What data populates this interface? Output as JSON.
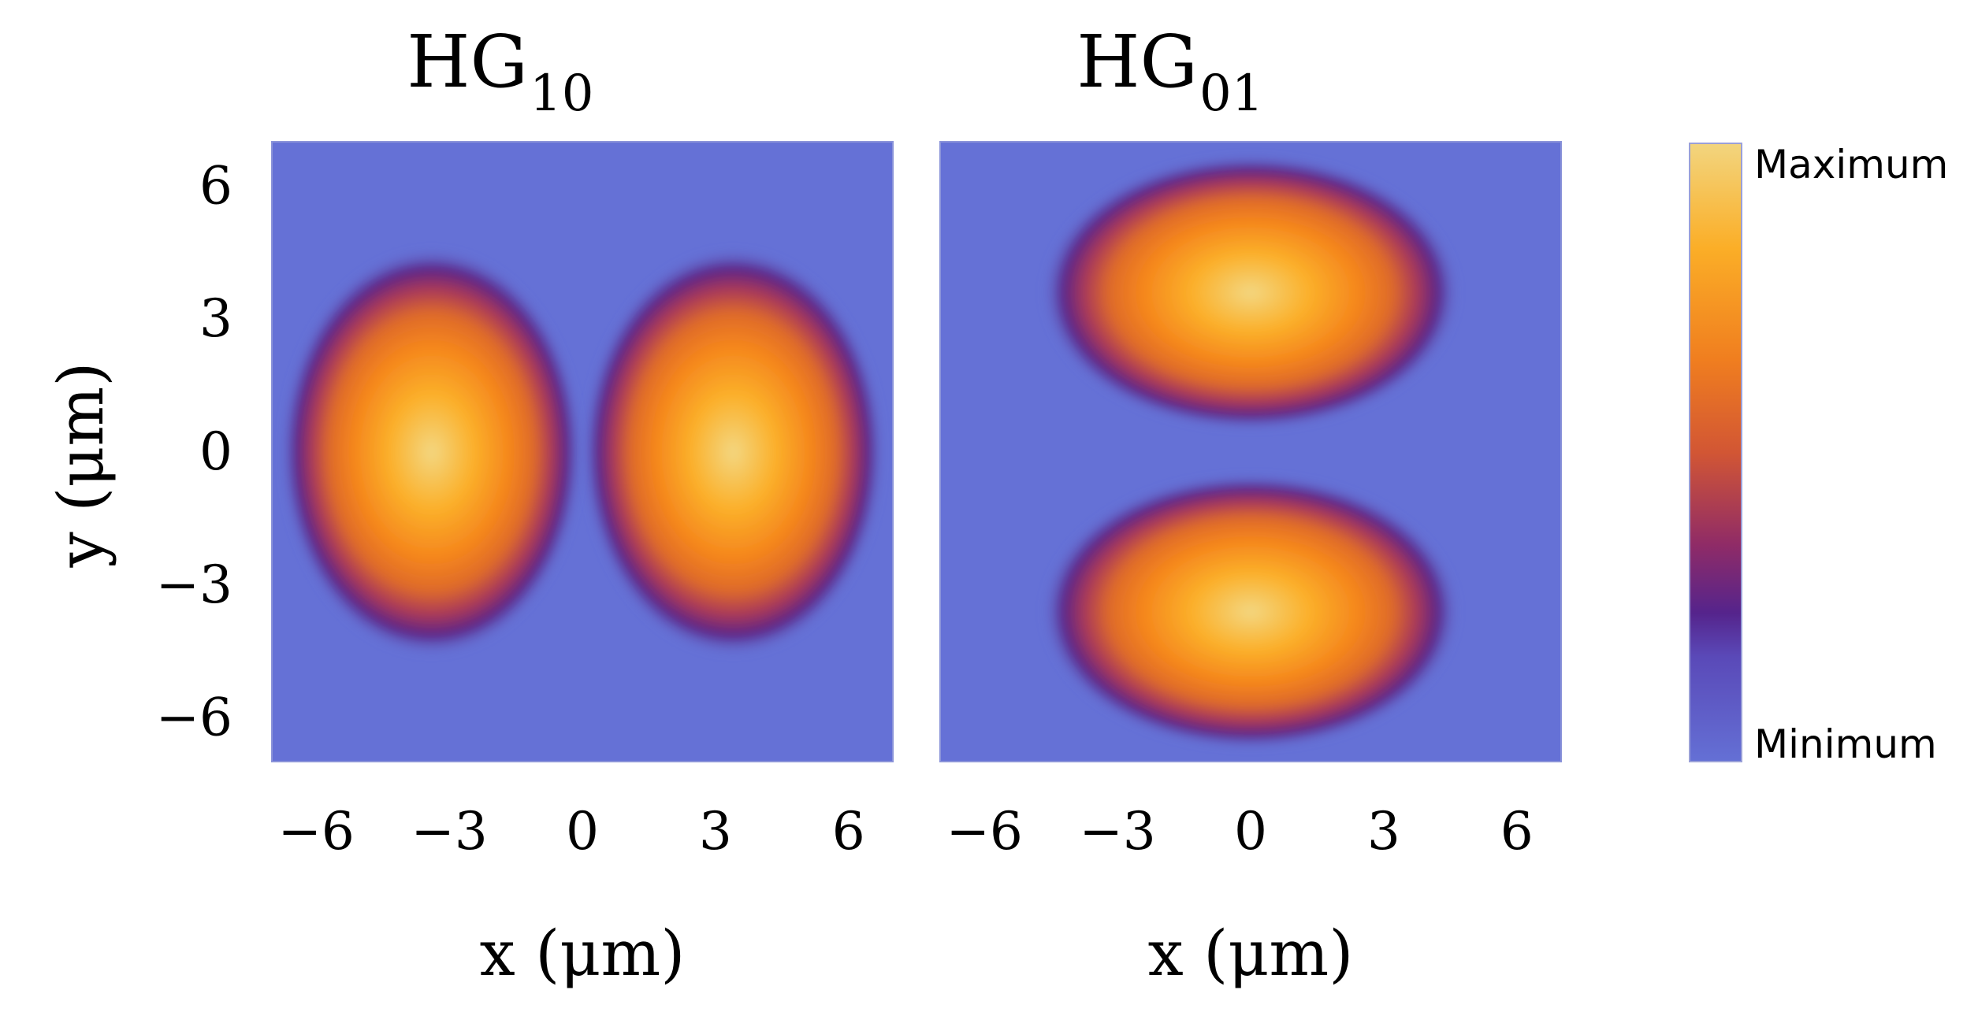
{
  "chart_data": [
    {
      "type": "heatmap",
      "title": "HG",
      "title_subscript": "10",
      "xlabel": "x (μm)",
      "ylabel": "y (μm)",
      "xlim": [
        -7,
        7
      ],
      "ylim": [
        -7,
        7
      ],
      "xticks": [
        -6,
        -3,
        0,
        3,
        6
      ],
      "yticks": [
        -6,
        -3,
        0,
        3,
        6
      ],
      "xtick_labels": [
        "−6",
        "−3",
        "0",
        "3",
        "6"
      ],
      "ytick_labels": [
        "6",
        "3",
        "0",
        "−3",
        "−6"
      ],
      "mode": {
        "m": 1,
        "n": 0
      },
      "lobes": [
        {
          "x": -3.4,
          "y": 0
        },
        {
          "x": 3.4,
          "y": 0
        }
      ]
    },
    {
      "type": "heatmap",
      "title": "HG",
      "title_subscript": "01",
      "xlabel": "x (μm)",
      "ylabel": "",
      "xlim": [
        -7,
        7
      ],
      "ylim": [
        -7,
        7
      ],
      "xticks": [
        -6,
        -3,
        0,
        3,
        6
      ],
      "xtick_labels": [
        "−6",
        "−3",
        "0",
        "3",
        "6"
      ],
      "mode": {
        "m": 0,
        "n": 1
      },
      "lobes": [
        {
          "x": 0,
          "y": 3.6
        },
        {
          "x": 0,
          "y": -3.6
        }
      ]
    }
  ],
  "colorbar": {
    "max_label": "Maximum",
    "min_label": "Minimum",
    "stops": [
      "#f3d782",
      "#fbae27",
      "#f07e1f",
      "#d25634",
      "#8f2b67",
      "#55248c",
      "#6271d3"
    ]
  },
  "colors": {
    "background": "#6571d6",
    "text": "#000000"
  }
}
